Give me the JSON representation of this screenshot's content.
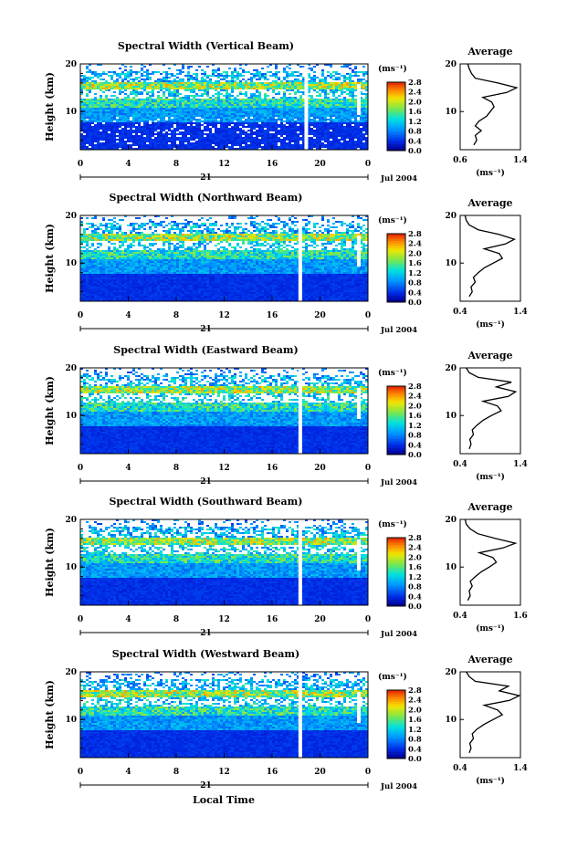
{
  "figure": {
    "xlabel_bottom": "Local Time",
    "date_label": "Jul 2004",
    "day_label": "21"
  },
  "chart_data": [
    {
      "type": "heatmap",
      "title": "Spectral Width (Vertical Beam)",
      "ylabel": "Height (km)",
      "xlim": [
        0,
        24
      ],
      "ylim": [
        2,
        20
      ],
      "xticks": [
        "0",
        "4",
        "8",
        "12",
        "16",
        "20",
        "0"
      ],
      "yticks": [
        "20",
        "10"
      ],
      "colorbar": {
        "unit": "(ms⁻¹)",
        "ticks": [
          "2.8",
          "2.4",
          "2.0",
          "1.6",
          "1.2",
          "0.8",
          "0.4",
          "0.0"
        ]
      },
      "data_gap_hours": [
        18.7
      ],
      "profile": {
        "title": "Average",
        "xlim": [
          0.6,
          1.4
        ],
        "xticks": [
          "0.6",
          "1.4"
        ],
        "ylim": [
          2,
          20
        ],
        "yticks": [
          "20",
          "10"
        ],
        "xlabel": "(ms⁻¹)",
        "height": [
          3,
          4,
          5,
          6,
          7,
          8,
          9,
          10,
          11,
          12,
          13,
          14,
          15,
          16,
          17,
          18,
          19,
          20
        ],
        "value": [
          0.78,
          0.82,
          0.8,
          0.88,
          0.8,
          0.85,
          0.95,
          1.0,
          1.05,
          1.02,
          0.9,
          1.22,
          1.35,
          1.1,
          0.8,
          0.75,
          0.72,
          0.7
        ]
      }
    },
    {
      "type": "heatmap",
      "title": "Spectral Width (Northward Beam)",
      "ylabel": "Height (km)",
      "xlim": [
        0,
        24
      ],
      "ylim": [
        2,
        20
      ],
      "xticks": [
        "0",
        "4",
        "8",
        "12",
        "16",
        "20",
        "0"
      ],
      "yticks": [
        "20",
        "10"
      ],
      "colorbar": {
        "unit": "(ms⁻¹)",
        "ticks": [
          "2.8",
          "2.4",
          "2.0",
          "1.6",
          "1.2",
          "0.8",
          "0.4",
          "0.0"
        ]
      },
      "data_gap_hours": [
        18.2
      ],
      "profile": {
        "title": "Average",
        "xlim": [
          0.4,
          1.4
        ],
        "xticks": [
          "0.4",
          "1.4"
        ],
        "ylim": [
          2,
          20
        ],
        "yticks": [
          "20",
          "10"
        ],
        "xlabel": "(ms⁻¹)",
        "height": [
          3,
          4,
          5,
          6,
          7,
          8,
          9,
          10,
          11,
          12,
          13,
          14,
          15,
          16,
          17,
          18,
          19,
          20
        ],
        "value": [
          0.55,
          0.6,
          0.58,
          0.65,
          0.62,
          0.7,
          0.8,
          0.95,
          1.1,
          1.05,
          0.8,
          1.15,
          1.3,
          1.05,
          0.7,
          0.55,
          0.5,
          0.48
        ]
      }
    },
    {
      "type": "heatmap",
      "title": "Spectral Width (Eastward Beam)",
      "ylabel": "Height (km)",
      "xlim": [
        0,
        24
      ],
      "ylim": [
        2,
        20
      ],
      "xticks": [
        "0",
        "4",
        "8",
        "12",
        "16",
        "20",
        "0"
      ],
      "yticks": [
        "20",
        "10"
      ],
      "colorbar": {
        "unit": "(ms⁻¹)",
        "ticks": [
          "2.8",
          "2.4",
          "2.0",
          "1.6",
          "1.2",
          "0.8",
          "0.4",
          "0.0"
        ]
      },
      "data_gap_hours": [
        18.2
      ],
      "profile": {
        "title": "Average",
        "xlim": [
          0.4,
          1.4
        ],
        "xticks": [
          "0.4",
          "1.4"
        ],
        "ylim": [
          2,
          20
        ],
        "yticks": [
          "20",
          "10"
        ],
        "xlabel": "(ms⁻¹)",
        "height": [
          3,
          4,
          5,
          6,
          7,
          8,
          9,
          10,
          11,
          12,
          13,
          14,
          15,
          16,
          17,
          18,
          19,
          20
        ],
        "value": [
          0.55,
          0.58,
          0.56,
          0.62,
          0.6,
          0.68,
          0.78,
          0.92,
          1.08,
          1.02,
          0.78,
          1.2,
          1.32,
          1.0,
          1.25,
          0.7,
          0.55,
          0.5
        ]
      }
    },
    {
      "type": "heatmap",
      "title": "Spectral Width (Southward Beam)",
      "ylabel": "Height (km)",
      "xlim": [
        0,
        24
      ],
      "ylim": [
        2,
        20
      ],
      "xticks": [
        "0",
        "4",
        "8",
        "12",
        "16",
        "20",
        "0"
      ],
      "yticks": [
        "20",
        "10"
      ],
      "colorbar": {
        "unit": "(ms⁻¹)",
        "ticks": [
          "2.8",
          "2.4",
          "2.0",
          "1.6",
          "1.2",
          "0.8",
          "0.4",
          "0.0"
        ]
      },
      "data_gap_hours": [
        18.2
      ],
      "profile": {
        "title": "Average",
        "xlim": [
          0.4,
          1.6
        ],
        "xticks": [
          "0.4",
          "1.6"
        ],
        "ylim": [
          2,
          20
        ],
        "yticks": [
          "20",
          "10"
        ],
        "xlabel": "(ms⁻¹)",
        "height": [
          3,
          4,
          5,
          6,
          7,
          8,
          9,
          10,
          11,
          12,
          13,
          14,
          15,
          16,
          17,
          18,
          19,
          20
        ],
        "value": [
          0.55,
          0.6,
          0.58,
          0.64,
          0.6,
          0.7,
          0.82,
          0.98,
          1.12,
          1.05,
          0.78,
          1.25,
          1.5,
          1.1,
          0.75,
          0.6,
          0.52,
          0.5
        ]
      }
    },
    {
      "type": "heatmap",
      "title": "Spectral Width (Westward Beam)",
      "ylabel": "Height (km)",
      "xlim": [
        0,
        24
      ],
      "ylim": [
        2,
        20
      ],
      "xticks": [
        "0",
        "4",
        "8",
        "12",
        "16",
        "20",
        "0"
      ],
      "yticks": [
        "20",
        "10"
      ],
      "colorbar": {
        "unit": "(ms⁻¹)",
        "ticks": [
          "2.8",
          "2.4",
          "2.0",
          "1.6",
          "1.2",
          "0.8",
          "0.4",
          "0.0"
        ]
      },
      "data_gap_hours": [
        18.2
      ],
      "profile": {
        "title": "Average",
        "xlim": [
          0.4,
          1.4
        ],
        "xticks": [
          "0.4",
          "1.4"
        ],
        "ylim": [
          2,
          20
        ],
        "yticks": [
          "20",
          "10"
        ],
        "xlabel": "(ms⁻¹)",
        "height": [
          3,
          4,
          5,
          6,
          7,
          8,
          9,
          10,
          11,
          12,
          13,
          14,
          15,
          16,
          17,
          18,
          19,
          20
        ],
        "value": [
          0.55,
          0.58,
          0.56,
          0.62,
          0.6,
          0.68,
          0.8,
          0.95,
          1.1,
          1.02,
          0.8,
          1.22,
          1.38,
          1.05,
          1.2,
          0.65,
          0.55,
          0.5
        ]
      }
    }
  ]
}
